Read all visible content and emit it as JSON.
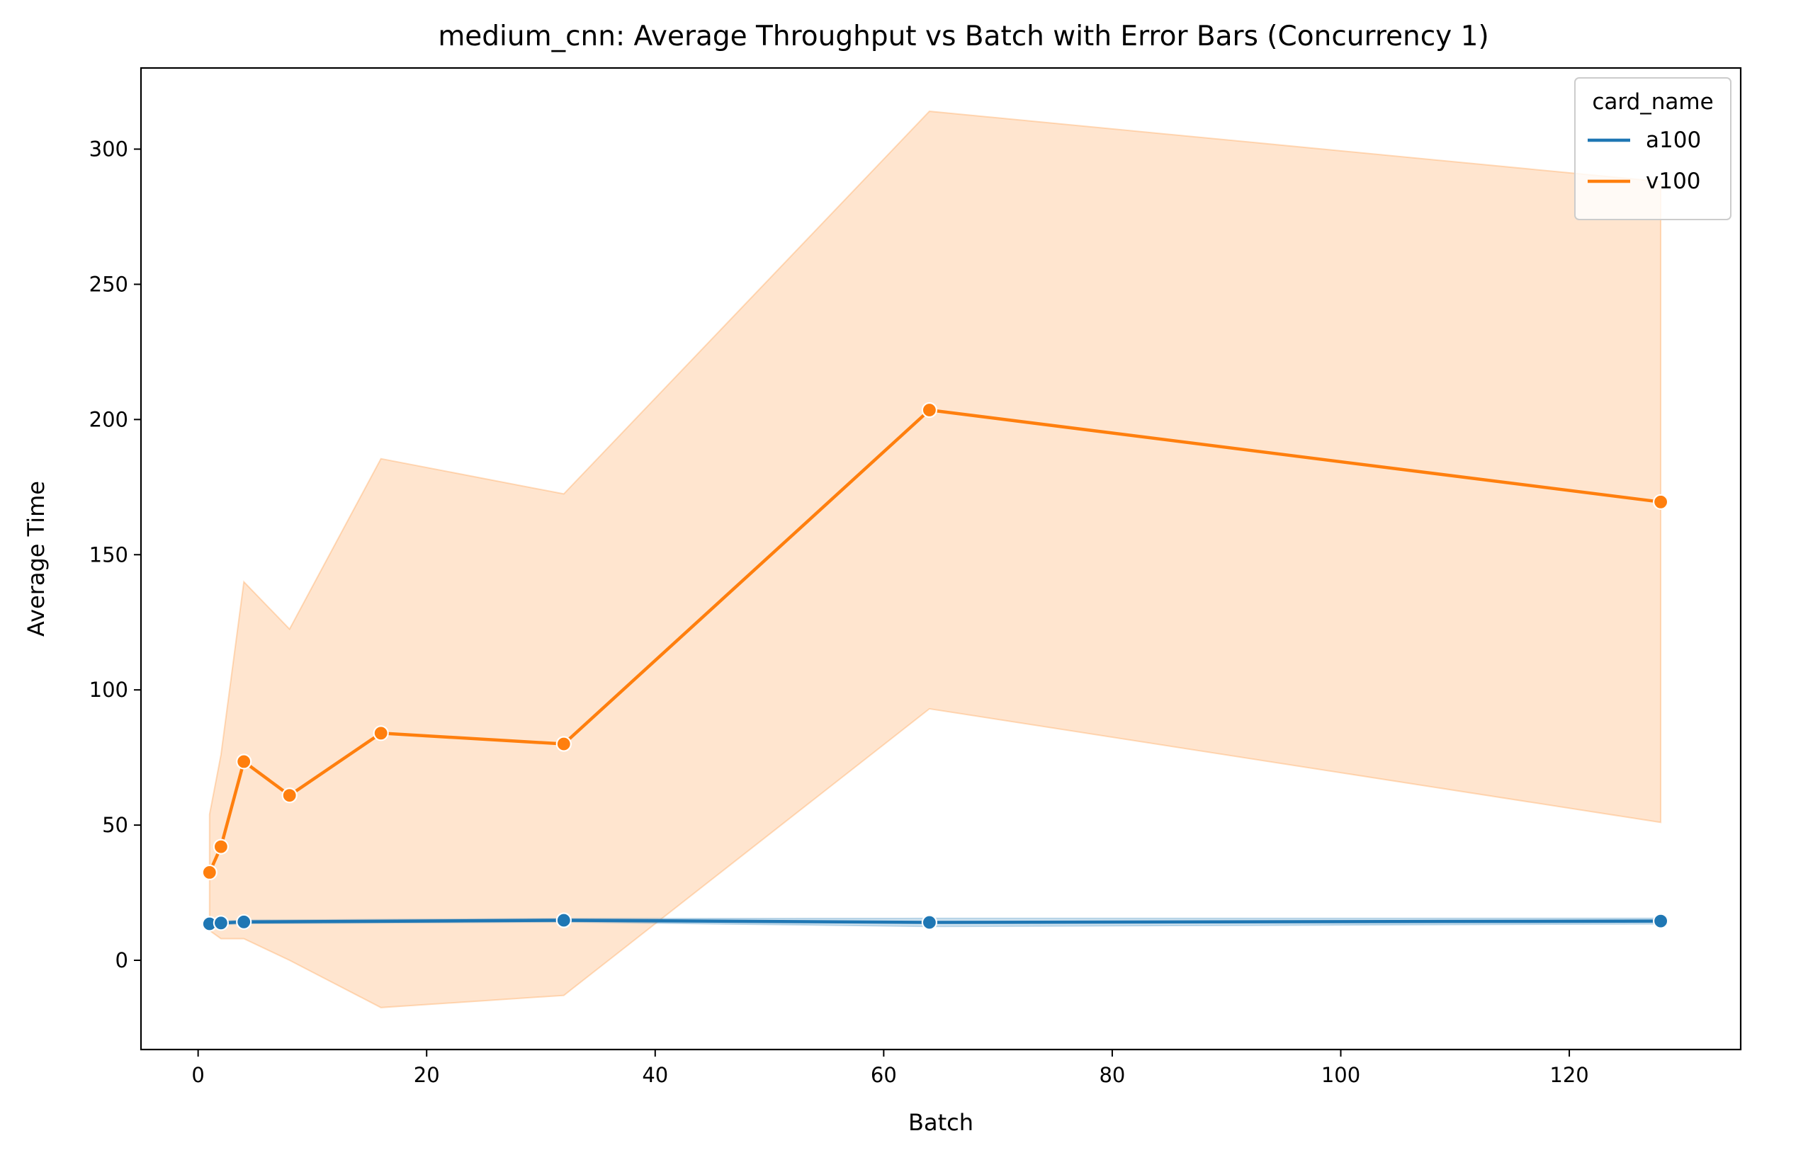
{
  "chart_data": {
    "type": "line",
    "title": "medium_cnn: Average Throughput vs Batch with Error Bars (Concurrency 1)",
    "xlabel": "Batch",
    "ylabel": "Average Time",
    "xlim": [
      -5,
      135
    ],
    "ylim": [
      -33,
      330
    ],
    "xticks": [
      0,
      20,
      40,
      60,
      80,
      100,
      120
    ],
    "yticks": [
      0,
      50,
      100,
      150,
      200,
      250,
      300
    ],
    "grid": false,
    "legend": {
      "title": "card_name",
      "placement": "top-right"
    },
    "series": [
      {
        "name": "a100",
        "color": "#1f77b4",
        "x": [
          1,
          2,
          4,
          32,
          64,
          128
        ],
        "y": [
          13.5,
          13.8,
          14.2,
          14.8,
          14.0,
          14.5
        ],
        "y_lower": [
          13.0,
          13.2,
          13.6,
          14.2,
          12.5,
          13.5
        ],
        "y_upper": [
          14.0,
          14.4,
          14.8,
          15.4,
          15.5,
          15.5
        ]
      },
      {
        "name": "v100",
        "color": "#ff7f0e",
        "x": [
          1,
          2,
          4,
          8,
          16,
          32,
          64,
          128
        ],
        "y": [
          32.5,
          42.0,
          73.5,
          61.0,
          84.0,
          80.0,
          203.5,
          169.5
        ],
        "y_lower": [
          11.0,
          8.0,
          8.0,
          0.0,
          -17.5,
          -13.0,
          93.0,
          51.0
        ],
        "y_upper": [
          54.0,
          76.0,
          140.0,
          122.5,
          185.5,
          172.5,
          314.0,
          288.0
        ]
      }
    ]
  }
}
